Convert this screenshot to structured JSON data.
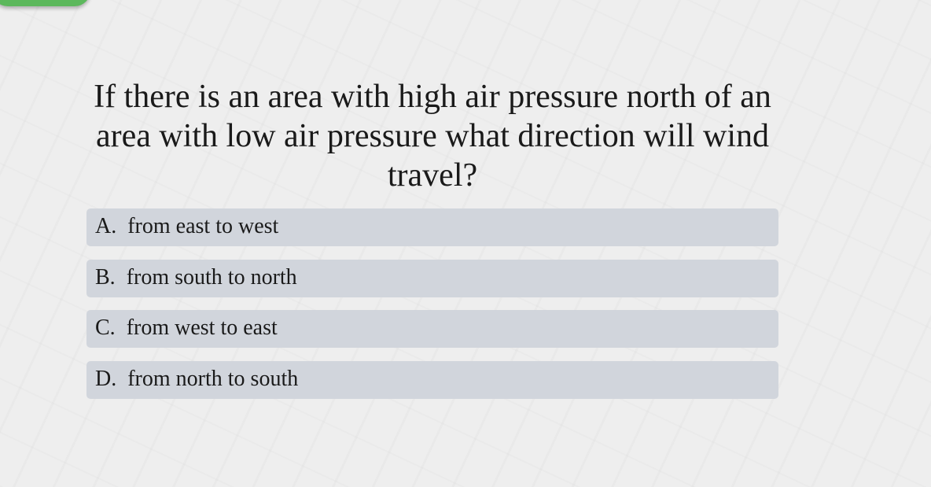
{
  "question": "If there is an area with high air pressure north of an area with low air pressure what direction will wind travel?",
  "options": [
    {
      "letter": "A.",
      "text": "from east to west"
    },
    {
      "letter": "B.",
      "text": "from south to north"
    },
    {
      "letter": "C.",
      "text": "from west to east"
    },
    {
      "letter": "D.",
      "text": "from north to south"
    }
  ],
  "colors": {
    "background": "#eeeeee",
    "option": "#d1d5dc",
    "tab": "#5cb85c"
  }
}
